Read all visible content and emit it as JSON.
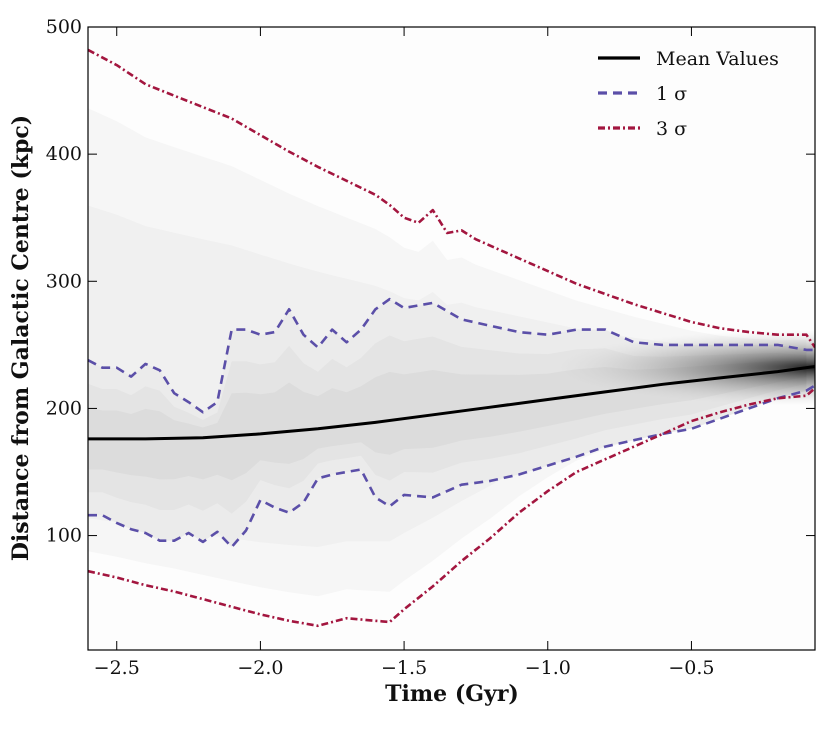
{
  "chart_data": {
    "type": "line",
    "title": "",
    "xlabel": "Time (Gyr)",
    "ylabel": "Distance from Galactic Centre (kpc)",
    "xlim": [
      -2.6,
      -0.07
    ],
    "ylim": [
      10,
      500
    ],
    "xticks": [
      -2.5,
      -2.0,
      -1.5,
      -1.0,
      -0.5
    ],
    "xtick_labels": [
      "−2.5",
      "−2.0",
      "−1.5",
      "−1.0",
      "−0.5"
    ],
    "yticks": [
      100,
      200,
      300,
      400,
      500
    ],
    "ytick_labels": [
      "100",
      "200",
      "300",
      "400",
      "500"
    ],
    "grid": false,
    "legend_position": "top-right",
    "colors": {
      "mean": "#000000",
      "sigma1": "#5b4fa8",
      "sigma3": "#a3163f"
    },
    "legend": [
      {
        "key": "mean",
        "label": "Mean Values",
        "style": "solid"
      },
      {
        "key": "sigma1",
        "label": "1 σ",
        "style": "dashed"
      },
      {
        "key": "sigma3",
        "label": "3 σ",
        "style": "dashdot"
      }
    ],
    "density_peak": [
      -0.07,
      232
    ],
    "series": [
      {
        "name": "Mean Values",
        "key": "mean",
        "x": [
          -2.6,
          -2.4,
          -2.2,
          -2.0,
          -1.8,
          -1.6,
          -1.4,
          -1.2,
          -1.0,
          -0.8,
          -0.6,
          -0.4,
          -0.2,
          -0.07
        ],
        "y": [
          176,
          176,
          177,
          180,
          184,
          189,
          195,
          201,
          207,
          213,
          219,
          224,
          229,
          233
        ]
      },
      {
        "name": "1 σ upper",
        "key": "sigma1",
        "x": [
          -2.6,
          -2.55,
          -2.5,
          -2.45,
          -2.4,
          -2.35,
          -2.3,
          -2.25,
          -2.2,
          -2.15,
          -2.1,
          -2.05,
          -2.0,
          -1.95,
          -1.9,
          -1.85,
          -1.8,
          -1.75,
          -1.7,
          -1.65,
          -1.6,
          -1.55,
          -1.5,
          -1.4,
          -1.3,
          -1.2,
          -1.1,
          -1.0,
          -0.9,
          -0.8,
          -0.7,
          -0.6,
          -0.5,
          -0.4,
          -0.3,
          -0.2,
          -0.1,
          -0.07
        ],
        "y": [
          238,
          232,
          232,
          225,
          235,
          230,
          212,
          205,
          197,
          205,
          262,
          262,
          258,
          260,
          278,
          258,
          248,
          262,
          252,
          262,
          278,
          286,
          279,
          283,
          270,
          265,
          260,
          258,
          262,
          262,
          252,
          250,
          250,
          250,
          250,
          250,
          246,
          246
        ]
      },
      {
        "name": "1 σ lower",
        "key": "sigma1",
        "x": [
          -2.6,
          -2.55,
          -2.5,
          -2.45,
          -2.4,
          -2.35,
          -2.3,
          -2.25,
          -2.2,
          -2.15,
          -2.1,
          -2.05,
          -2.0,
          -1.95,
          -1.9,
          -1.85,
          -1.8,
          -1.75,
          -1.7,
          -1.65,
          -1.6,
          -1.55,
          -1.5,
          -1.4,
          -1.3,
          -1.2,
          -1.1,
          -1.0,
          -0.9,
          -0.8,
          -0.7,
          -0.6,
          -0.5,
          -0.4,
          -0.3,
          -0.2,
          -0.1,
          -0.07
        ],
        "y": [
          116,
          116,
          110,
          105,
          102,
          96,
          96,
          102,
          95,
          103,
          91,
          104,
          128,
          122,
          118,
          126,
          145,
          148,
          150,
          152,
          130,
          123,
          132,
          130,
          140,
          143,
          148,
          155,
          162,
          170,
          175,
          180,
          184,
          192,
          200,
          208,
          214,
          218
        ]
      },
      {
        "name": "3 σ upper",
        "key": "sigma3",
        "x": [
          -2.6,
          -2.5,
          -2.4,
          -2.3,
          -2.2,
          -2.1,
          -2.0,
          -1.9,
          -1.8,
          -1.7,
          -1.6,
          -1.55,
          -1.5,
          -1.45,
          -1.4,
          -1.35,
          -1.3,
          -1.25,
          -1.2,
          -1.1,
          -1.0,
          -0.9,
          -0.8,
          -0.7,
          -0.6,
          -0.5,
          -0.4,
          -0.3,
          -0.2,
          -0.1,
          -0.07
        ],
        "y": [
          482,
          470,
          455,
          446,
          437,
          428,
          415,
          402,
          390,
          379,
          368,
          360,
          350,
          346,
          356,
          338,
          340,
          333,
          328,
          318,
          308,
          298,
          290,
          282,
          275,
          268,
          263,
          260,
          258,
          258,
          248
        ]
      },
      {
        "name": "3 σ lower",
        "key": "sigma3",
        "x": [
          -2.6,
          -2.5,
          -2.4,
          -2.3,
          -2.2,
          -2.1,
          -2.0,
          -1.9,
          -1.8,
          -1.7,
          -1.6,
          -1.55,
          -1.5,
          -1.4,
          -1.3,
          -1.2,
          -1.1,
          -1.0,
          -0.9,
          -0.8,
          -0.7,
          -0.6,
          -0.5,
          -0.4,
          -0.3,
          -0.2,
          -0.1,
          -0.07
        ],
        "y": [
          72,
          67,
          61,
          56,
          50,
          44,
          38,
          33,
          29,
          35,
          33,
          32,
          42,
          60,
          80,
          98,
          118,
          135,
          150,
          160,
          170,
          180,
          190,
          197,
          203,
          208,
          210,
          216
        ]
      }
    ]
  }
}
